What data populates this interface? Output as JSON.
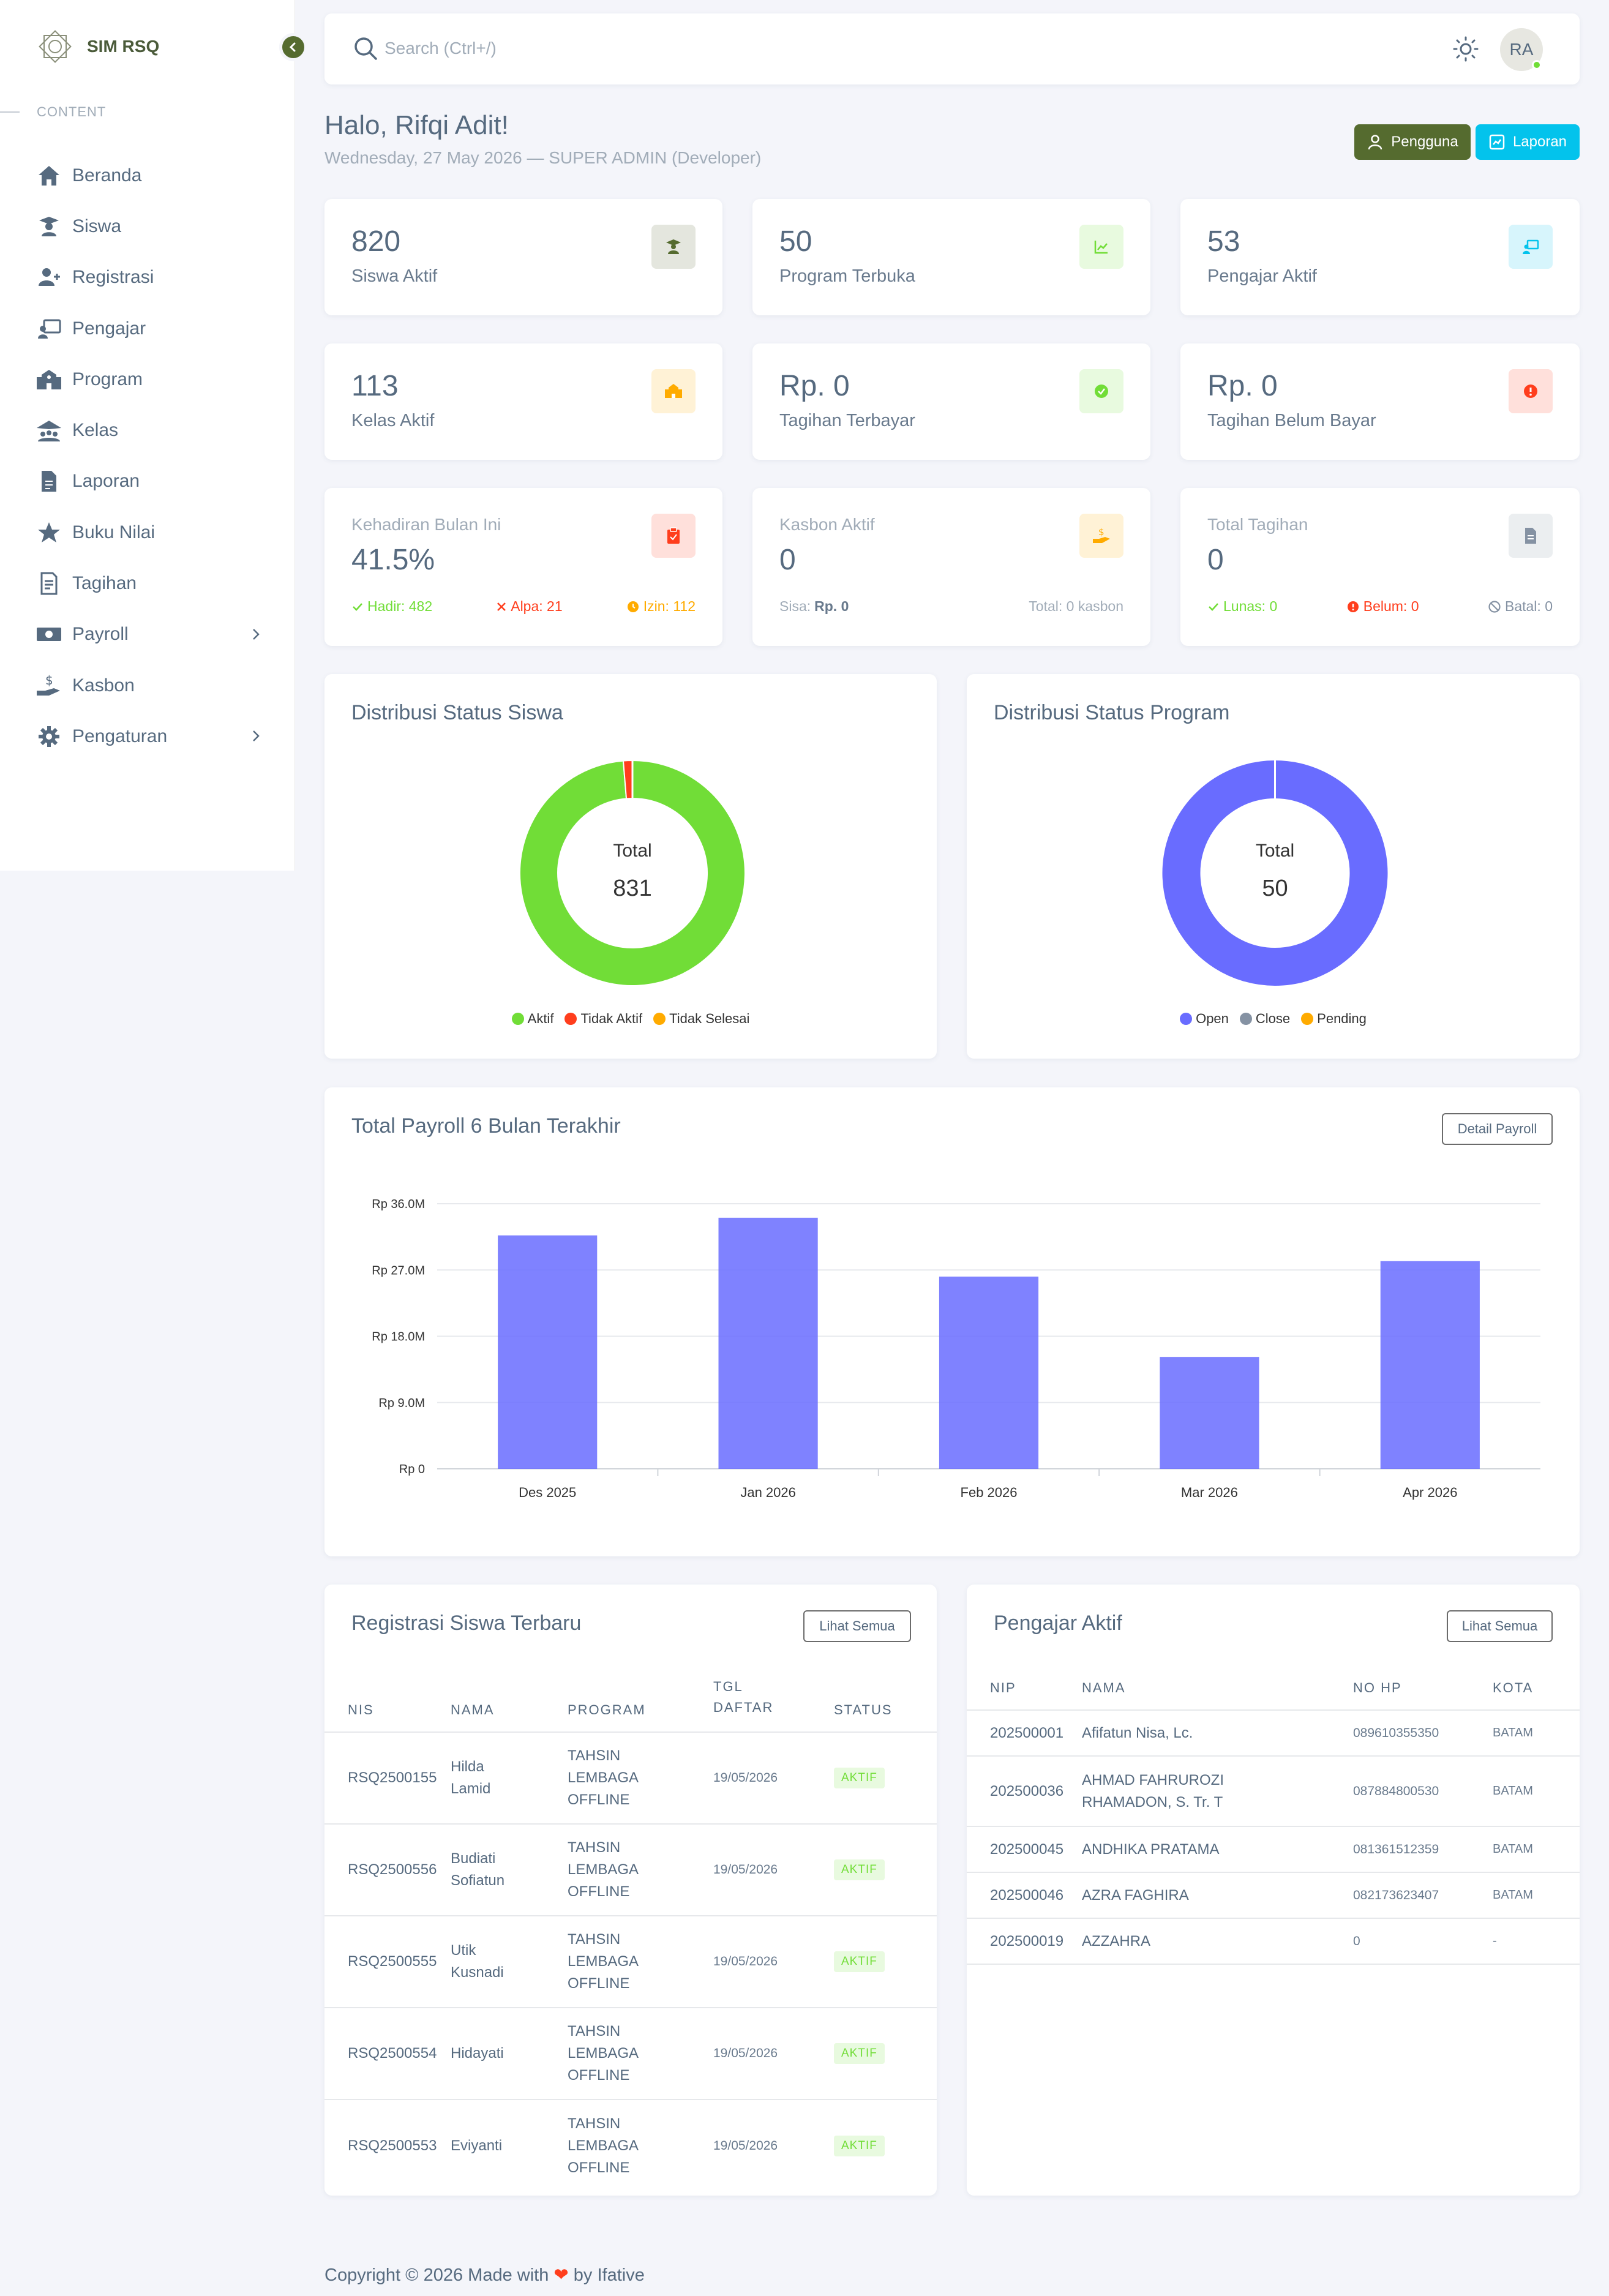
{
  "app": {
    "name": "SIM RSQ"
  },
  "sidebar": {
    "section": "CONTENT",
    "items": [
      {
        "label": "Beranda",
        "icon": "home-icon"
      },
      {
        "label": "Siswa",
        "icon": "student-icon"
      },
      {
        "label": "Registrasi",
        "icon": "user-plus-icon"
      },
      {
        "label": "Pengajar",
        "icon": "teacher-icon"
      },
      {
        "label": "Program",
        "icon": "school-icon"
      },
      {
        "label": "Kelas",
        "icon": "class-icon"
      },
      {
        "label": "Laporan",
        "icon": "report-icon"
      },
      {
        "label": "Buku Nilai",
        "icon": "star-icon"
      },
      {
        "label": "Tagihan",
        "icon": "invoice-icon"
      },
      {
        "label": "Payroll",
        "icon": "money-icon"
      },
      {
        "label": "Kasbon",
        "icon": "hand-money-icon"
      },
      {
        "label": "Pengaturan",
        "icon": "gear-icon"
      }
    ]
  },
  "topbar": {
    "search_placeholder": "Search (Ctrl+/)",
    "avatar_initials": "RA"
  },
  "header": {
    "greeting": "Halo, Rifqi Adit!",
    "subtitle": "Wednesday, 27 May 2026 — SUPER ADMIN (Developer)",
    "btn_pengguna": "Pengguna",
    "btn_laporan": "Laporan"
  },
  "stats": {
    "siswa_aktif": {
      "value": "820",
      "label": "Siswa Aktif"
    },
    "program_terbuka": {
      "value": "50",
      "label": "Program Terbuka"
    },
    "pengajar_aktif": {
      "value": "53",
      "label": "Pengajar Aktif"
    },
    "kelas_aktif": {
      "value": "113",
      "label": "Kelas Aktif"
    },
    "tagihan_terbayar": {
      "value": "Rp. 0",
      "label": "Tagihan Terbayar"
    },
    "tagihan_belum": {
      "value": "Rp. 0",
      "label": "Tagihan Belum Bayar"
    }
  },
  "kehadiran": {
    "label": "Kehadiran Bulan Ini",
    "value": "41.5%",
    "hadir": "Hadir: 482",
    "alpa": "Alpa: 21",
    "izin": "Izin: 112"
  },
  "kasbon": {
    "label": "Kasbon Aktif",
    "value": "0",
    "sisa_label": "Sisa:",
    "sisa_value": "Rp. 0",
    "total": "Total: 0 kasbon"
  },
  "total_tagihan": {
    "label": "Total Tagihan",
    "value": "0",
    "lunas": "Lunas: 0",
    "belum": "Belum: 0",
    "batal": "Batal: 0"
  },
  "donut_siswa": {
    "title": "Distribusi Status Siswa",
    "center_label": "Total",
    "center_value": "831",
    "slice_label": "98.7%",
    "legend": [
      {
        "label": "Aktif",
        "color": "#71dd37"
      },
      {
        "label": "Tidak Aktif",
        "color": "#ff3e1d"
      },
      {
        "label": "Tidak Selesai",
        "color": "#ffab00"
      }
    ]
  },
  "donut_program": {
    "title": "Distribusi Status Program",
    "center_label": "Total",
    "center_value": "50",
    "slice_label": "100.0%",
    "legend": [
      {
        "label": "Open",
        "color": "#696cff"
      },
      {
        "label": "Close",
        "color": "#8592a3"
      },
      {
        "label": "Pending",
        "color": "#ffab00"
      }
    ]
  },
  "payroll": {
    "title": "Total Payroll 6 Bulan Terakhir",
    "detail_btn": "Detail Payroll"
  },
  "chart_data": {
    "type": "bar",
    "categories": [
      "Des 2025",
      "Jan 2026",
      "Feb 2026",
      "Mar 2026",
      "Apr 2026"
    ],
    "values": [
      31.7,
      34.1,
      26.1,
      15.2,
      28.2
    ],
    "ylim": [
      0,
      36
    ],
    "yticks": [
      "Rp 0",
      "Rp 9.0M",
      "Rp 18.0M",
      "Rp 27.0M",
      "Rp 36.0M"
    ],
    "ytick_values": [
      0,
      9,
      18,
      27,
      36
    ],
    "unit": "M",
    "color": "#696cff",
    "grid": true
  },
  "donut_values": {
    "siswa": [
      98.7,
      1.3,
      0
    ],
    "program": [
      100,
      0,
      0
    ]
  },
  "registrasi": {
    "title": "Registrasi Siswa Terbaru",
    "btn": "Lihat Semua",
    "headers": [
      "NIS",
      "NAMA",
      "PROGRAM",
      "TGL DAFTAR",
      "STATUS"
    ],
    "rows": [
      {
        "nis": "RSQ2500155",
        "nama1": "Hilda",
        "nama2": "Lamid",
        "prog1": "TAHSIN",
        "prog2": "LEMBAGA",
        "prog3": "OFFLINE",
        "tgl": "19/05/2026",
        "status": "AKTIF"
      },
      {
        "nis": "RSQ2500556",
        "nama1": "Budiati",
        "nama2": "Sofiatun",
        "prog1": "TAHSIN",
        "prog2": "LEMBAGA",
        "prog3": "OFFLINE",
        "tgl": "19/05/2026",
        "status": "AKTIF"
      },
      {
        "nis": "RSQ2500555",
        "nama1": "Utik",
        "nama2": "Kusnadi",
        "prog1": "TAHSIN",
        "prog2": "LEMBAGA",
        "prog3": "OFFLINE",
        "tgl": "19/05/2026",
        "status": "AKTIF"
      },
      {
        "nis": "RSQ2500554",
        "nama1": "Hidayati",
        "nama2": "",
        "prog1": "TAHSIN",
        "prog2": "LEMBAGA",
        "prog3": "OFFLINE",
        "tgl": "19/05/2026",
        "status": "AKTIF"
      },
      {
        "nis": "RSQ2500553",
        "nama1": "Eviyanti",
        "nama2": "",
        "prog1": "TAHSIN",
        "prog2": "LEMBAGA",
        "prog3": "OFFLINE",
        "tgl": "19/05/2026",
        "status": "AKTIF"
      }
    ]
  },
  "pengajar": {
    "title": "Pengajar Aktif",
    "btn": "Lihat Semua",
    "headers": [
      "NIP",
      "NAMA",
      "NO HP",
      "KOTA"
    ],
    "rows": [
      {
        "nip": "202500001",
        "nama1": "Afifatun Nisa, Lc.",
        "nama2": "",
        "hp": "089610355350",
        "kota": "BATAM"
      },
      {
        "nip": "202500036",
        "nama1": "AHMAD FAHRUROZI",
        "nama2": "RHAMADON, S. Tr. T",
        "hp": "087884800530",
        "kota": "BATAM"
      },
      {
        "nip": "202500045",
        "nama1": "ANDHIKA PRATAMA",
        "nama2": "",
        "hp": "081361512359",
        "kota": "BATAM"
      },
      {
        "nip": "202500046",
        "nama1": "AZRA FAGHIRA",
        "nama2": "",
        "hp": "082173623407",
        "kota": "BATAM"
      },
      {
        "nip": "202500019",
        "nama1": "AZZAHRA",
        "nama2": "",
        "hp": "0",
        "kota": "-"
      }
    ]
  },
  "footer": {
    "prefix": "Copyright © 2026 Made with",
    "by": "by",
    "author": "Ifative"
  }
}
